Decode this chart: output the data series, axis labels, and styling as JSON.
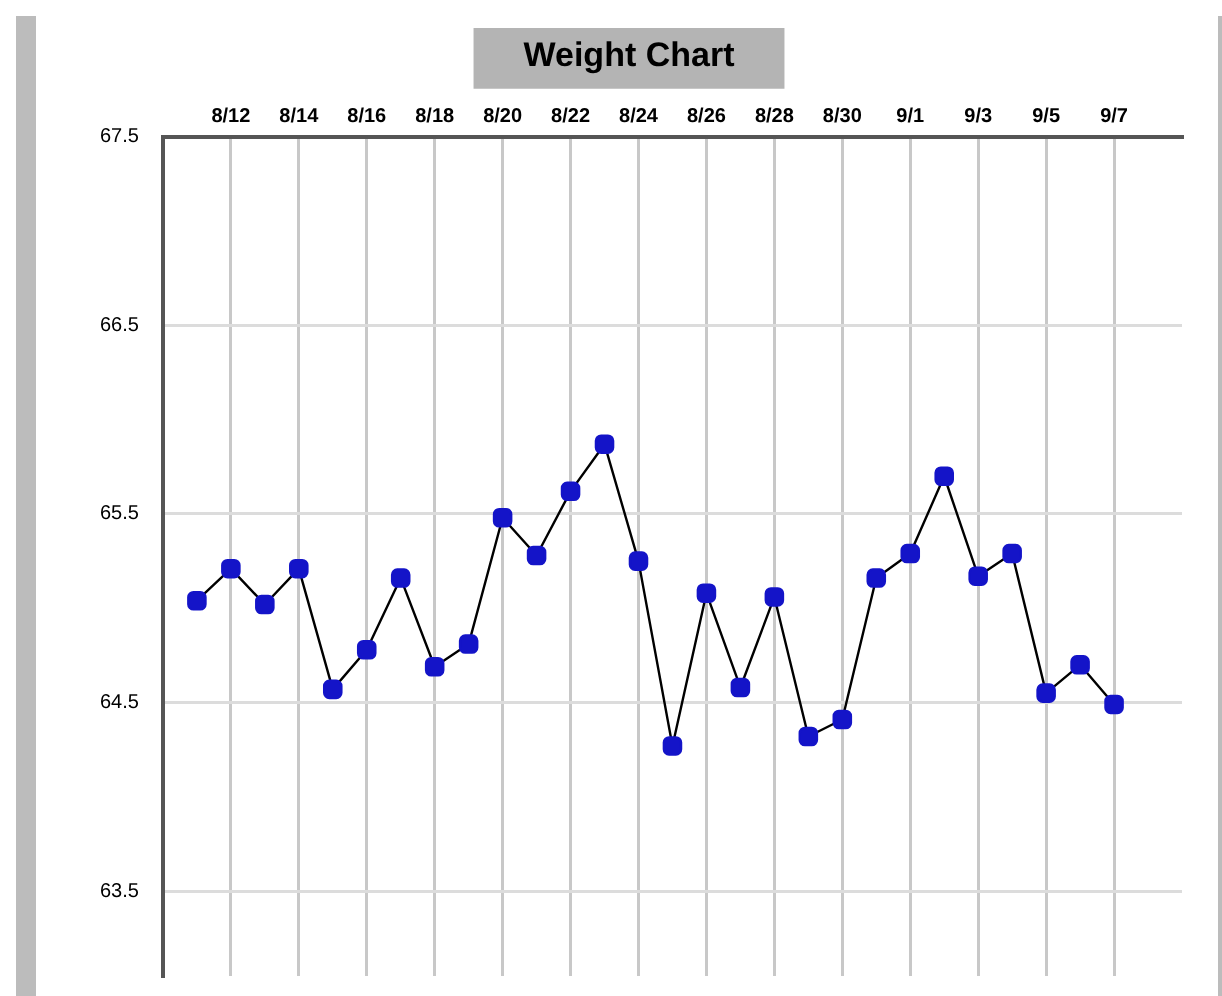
{
  "chart_data": {
    "type": "line",
    "title": "Weight Chart",
    "x": [
      "--08-11",
      "--08-12",
      "--08-13",
      "--08-14",
      "--08-15",
      "--08-16",
      "--08-17",
      "--08-18",
      "--08-19",
      "--08-20",
      "--08-21",
      "--08-22",
      "--08-23",
      "--08-24",
      "--08-25",
      "--08-26",
      "--08-27",
      "--08-28",
      "--08-29",
      "--08-30",
      "--08-31",
      "--09-01",
      "--09-02",
      "--09-03",
      "--09-04",
      "--09-05",
      "--09-06",
      "--09-07"
    ],
    "series": [
      {
        "color": "#1414c8",
        "values": [
          65.04,
          65.21,
          65.02,
          65.21,
          64.57,
          64.78,
          65.16,
          64.69,
          64.81,
          65.48,
          65.28,
          65.62,
          65.87,
          65.25,
          64.27,
          65.08,
          64.58,
          65.06,
          64.32,
          64.41,
          65.16,
          65.29,
          65.7,
          65.17,
          65.29,
          64.55,
          64.7,
          64.49
        ]
      }
    ],
    "xlim": [
      "--08-10",
      "--09-09"
    ],
    "xticks": [
      {
        "value": "--08-12",
        "label": "8/12"
      },
      {
        "value": "--08-14",
        "label": "8/14"
      },
      {
        "value": "--08-16",
        "label": "8/16"
      },
      {
        "value": "--08-18",
        "label": "8/18"
      },
      {
        "value": "--08-20",
        "label": "8/20"
      },
      {
        "value": "--08-22",
        "label": "8/22"
      },
      {
        "value": "--08-24",
        "label": "8/24"
      },
      {
        "value": "--08-26",
        "label": "8/26"
      },
      {
        "value": "--08-28",
        "label": "8/28"
      },
      {
        "value": "--08-30",
        "label": "8/30"
      },
      {
        "value": "--09-01",
        "label": "9/1"
      },
      {
        "value": "--09-03",
        "label": "9/3"
      },
      {
        "value": "--09-05",
        "label": "9/5"
      },
      {
        "value": "--09-07",
        "label": "9/7"
      }
    ],
    "ylim": [
      63.05,
      67.5
    ],
    "yticks": [
      63.5,
      64.5,
      65.5,
      66.5,
      67.5
    ],
    "grid": true,
    "legend": false,
    "marker": "square",
    "line_style": "solid"
  }
}
